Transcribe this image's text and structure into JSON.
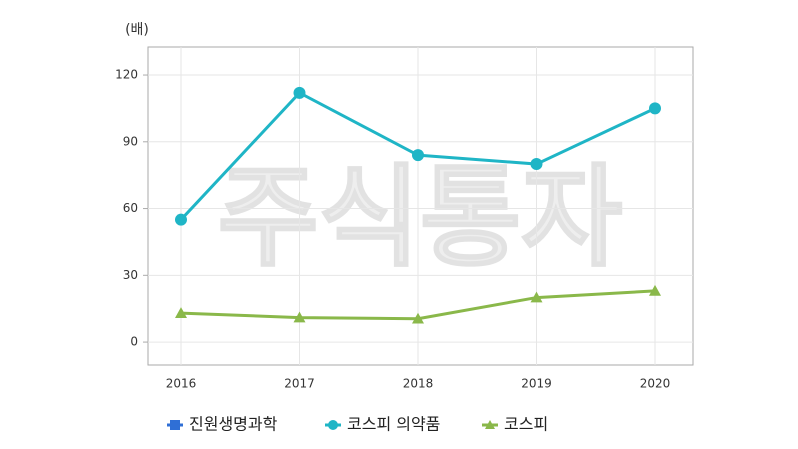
{
  "chart_data": {
    "type": "line",
    "y_axis_label": "(배)",
    "watermark": "주식통자",
    "categories": [
      "2016",
      "2017",
      "2018",
      "2019",
      "2020"
    ],
    "series": [
      {
        "name": "진원생명과학",
        "color": "#2f6fd6",
        "marker": "square",
        "values": [
          null,
          null,
          null,
          null,
          null
        ]
      },
      {
        "name": "코스피 의약품",
        "color": "#1fb5c6",
        "marker": "circle",
        "values": [
          55,
          112,
          84,
          80,
          105
        ]
      },
      {
        "name": "코스피",
        "color": "#8ab84a",
        "marker": "triangle",
        "values": [
          13,
          11,
          10.5,
          20,
          23
        ]
      }
    ],
    "ylim": [
      -10.3,
      132.6
    ],
    "yticks": [
      0,
      30,
      60,
      90,
      120
    ],
    "grid": true,
    "legend": "bottom"
  }
}
